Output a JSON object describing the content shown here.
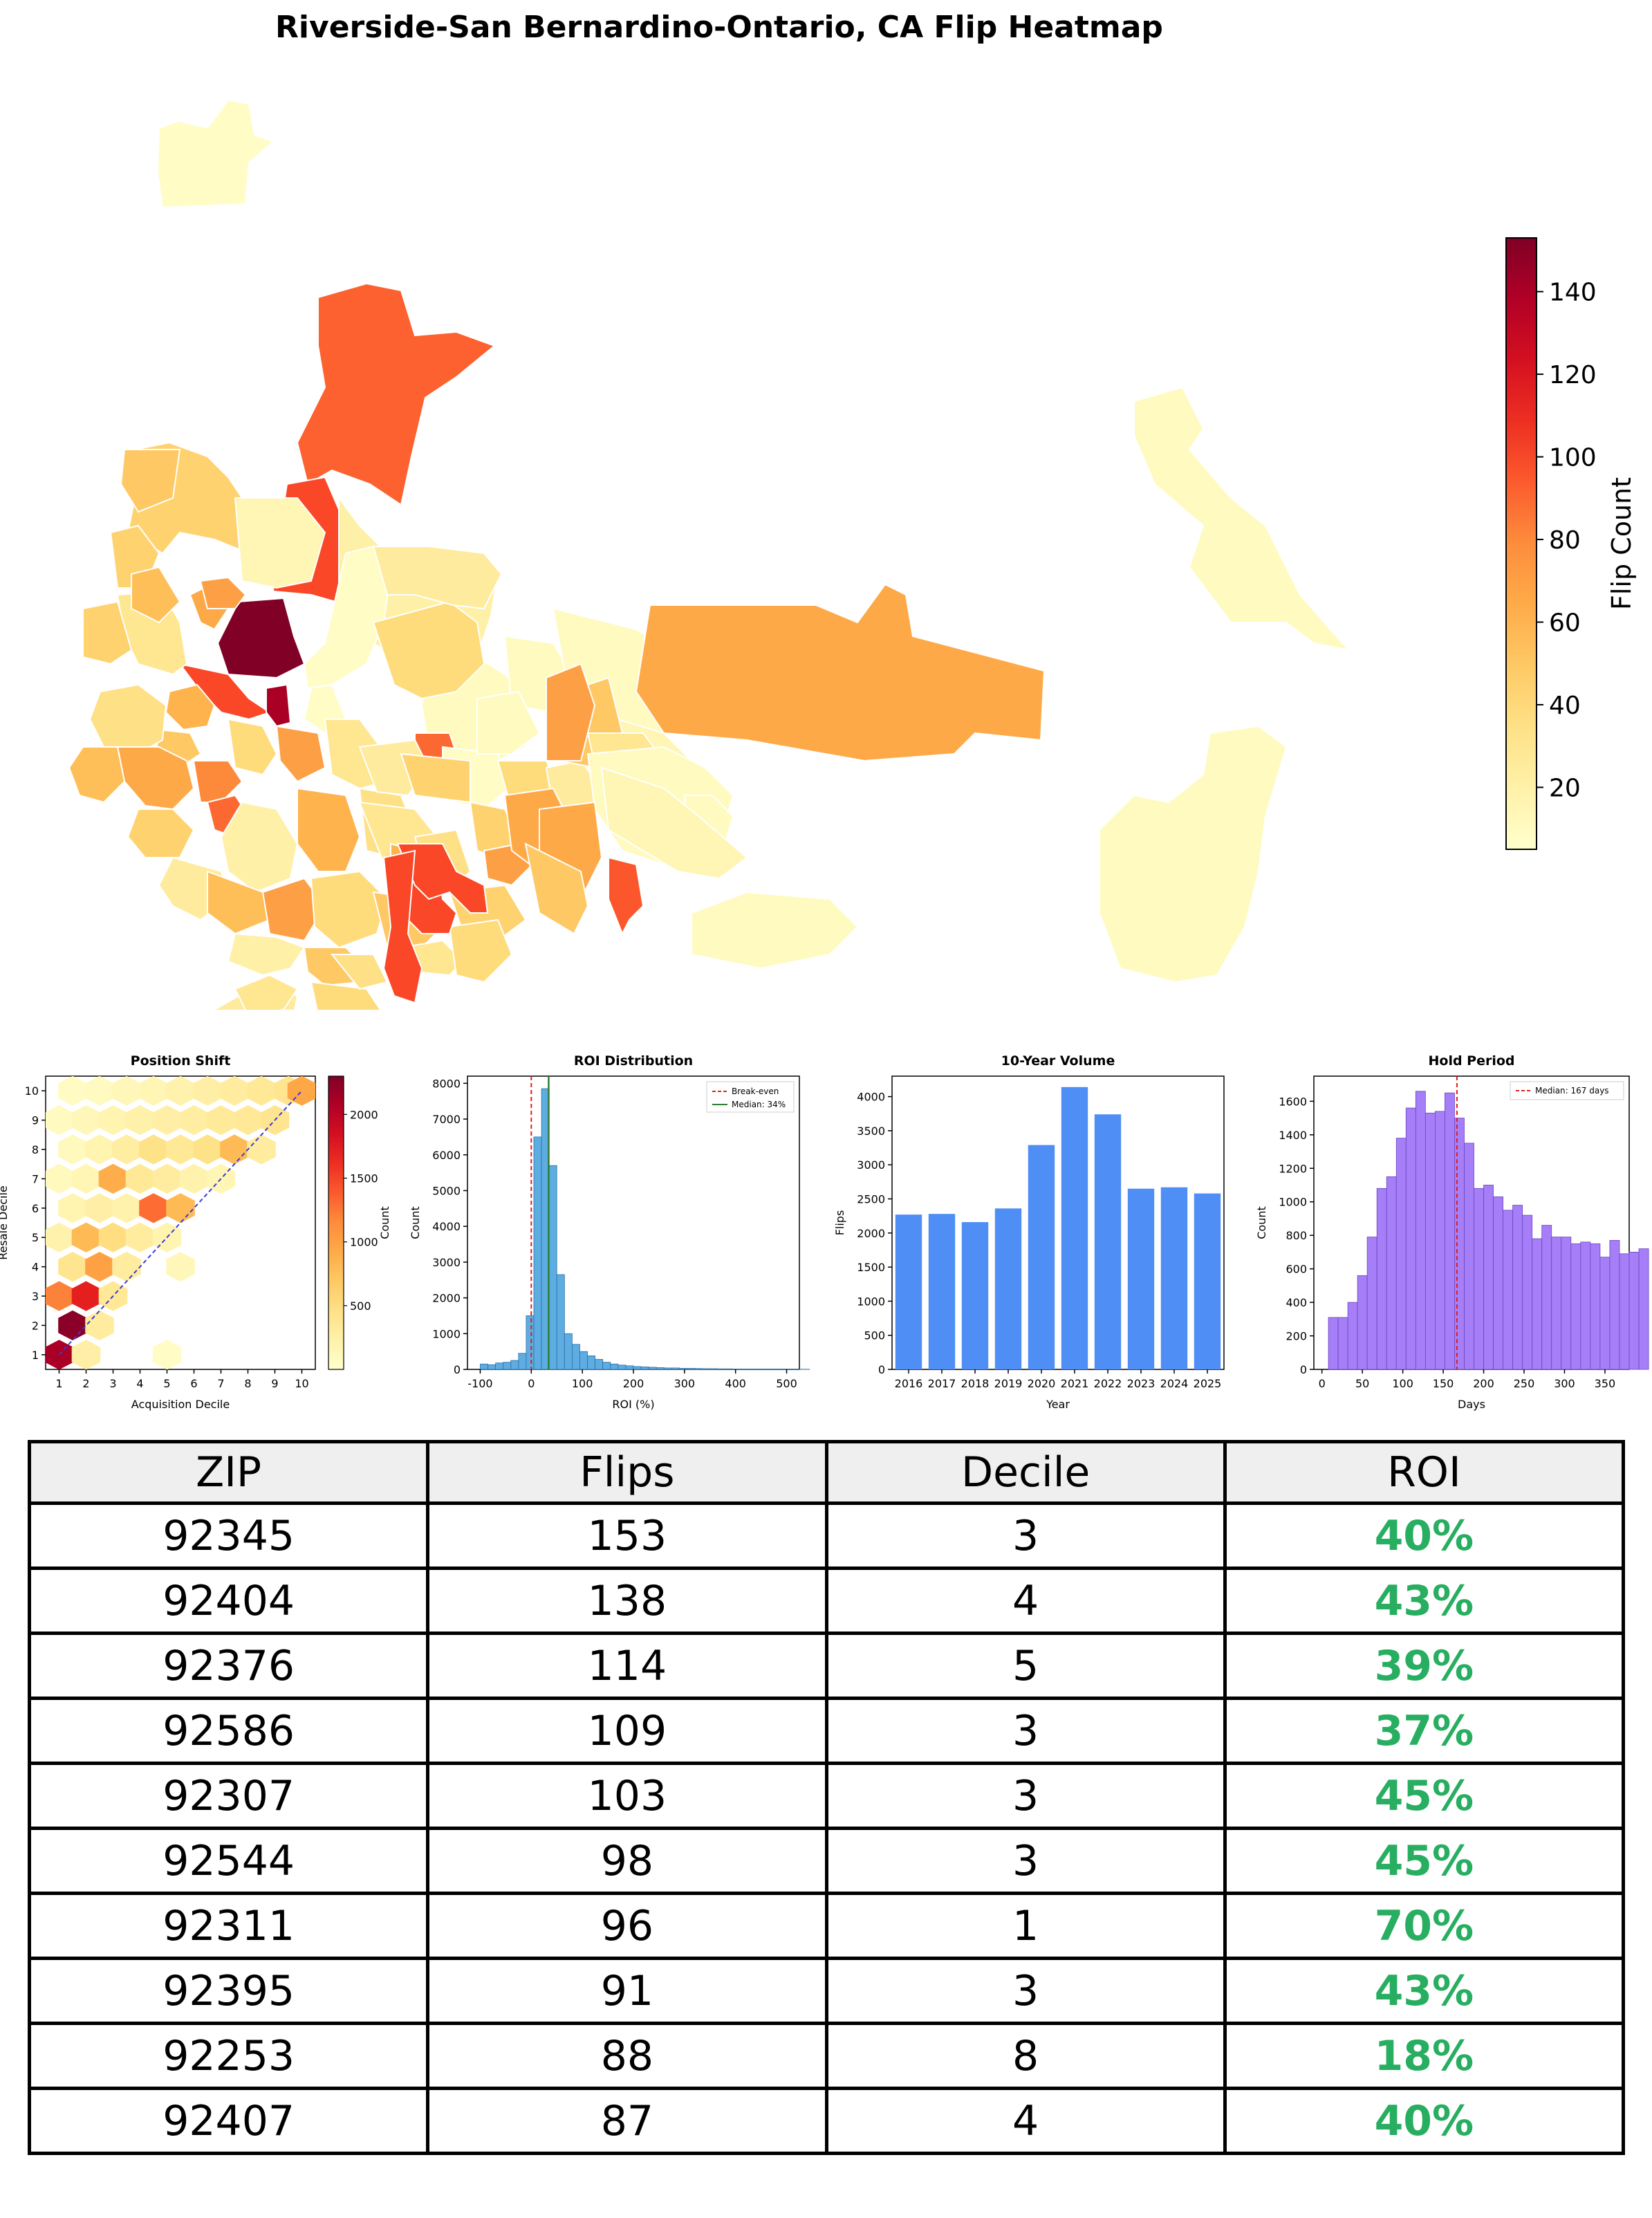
{
  "title": "Riverside-San Bernardino-Ontario, CA Flip Heatmap",
  "colors": {
    "map_light": "#ffffcc",
    "map_dark": "#800026",
    "roi_bar": "#5dade2",
    "volume_bar": "#4f8ef5",
    "hold_bar": "#a67ef7",
    "roi_text": "#27ae60",
    "break_even": "#e01e1e",
    "median": "#2e7d32"
  },
  "chart_data": [
    {
      "type": "map",
      "id": "flip-heatmap",
      "colorbar": {
        "label": "Flip Count",
        "min": 5,
        "max": 153,
        "ticks": [
          20,
          40,
          60,
          80,
          100,
          120,
          140
        ]
      }
    },
    {
      "type": "hexbin",
      "id": "position-shift",
      "title": "Position Shift",
      "xlabel": "Acquisition Decile",
      "ylabel": "Resale Decile",
      "xlim": [
        0.5,
        10.5
      ],
      "ylim": [
        0.5,
        10.5
      ],
      "xticks": [
        "1",
        "2",
        "3",
        "4",
        "5",
        "6",
        "7",
        "8",
        "9",
        "10"
      ],
      "yticks": [
        "1",
        "2",
        "3",
        "4",
        "5",
        "6",
        "7",
        "8",
        "9",
        "10"
      ],
      "colorbar": {
        "label": "Count",
        "min": 0,
        "max": 2300,
        "ticks": [
          "500",
          "1000",
          "1500",
          "2000"
        ]
      },
      "hexes": [
        {
          "x": 1.0,
          "y": 1.0,
          "v": 2100
        },
        {
          "x": 2.0,
          "y": 1.0,
          "v": 250
        },
        {
          "x": 5.0,
          "y": 1.0,
          "v": 40
        },
        {
          "x": 1.5,
          "y": 2.0,
          "v": 2250
        },
        {
          "x": 2.5,
          "y": 2.0,
          "v": 300
        },
        {
          "x": 1.0,
          "y": 3.0,
          "v": 1200
        },
        {
          "x": 2.0,
          "y": 3.0,
          "v": 1700
        },
        {
          "x": 3.0,
          "y": 3.0,
          "v": 350
        },
        {
          "x": 1.5,
          "y": 4.0,
          "v": 400
        },
        {
          "x": 2.5,
          "y": 4.0,
          "v": 1000
        },
        {
          "x": 3.5,
          "y": 4.0,
          "v": 300
        },
        {
          "x": 5.5,
          "y": 4.0,
          "v": 120
        },
        {
          "x": 1.0,
          "y": 5.0,
          "v": 200
        },
        {
          "x": 2.0,
          "y": 5.0,
          "v": 800
        },
        {
          "x": 3.0,
          "y": 5.0,
          "v": 500
        },
        {
          "x": 4.0,
          "y": 5.0,
          "v": 300
        },
        {
          "x": 5.0,
          "y": 5.0,
          "v": 180
        },
        {
          "x": 1.5,
          "y": 6.0,
          "v": 180
        },
        {
          "x": 2.5,
          "y": 6.0,
          "v": 250
        },
        {
          "x": 3.5,
          "y": 6.0,
          "v": 200
        },
        {
          "x": 4.5,
          "y": 6.0,
          "v": 1300
        },
        {
          "x": 5.5,
          "y": 6.0,
          "v": 800
        },
        {
          "x": 1.0,
          "y": 7.0,
          "v": 100
        },
        {
          "x": 2.0,
          "y": 7.0,
          "v": 150
        },
        {
          "x": 3.0,
          "y": 7.0,
          "v": 900
        },
        {
          "x": 4.0,
          "y": 7.0,
          "v": 350
        },
        {
          "x": 5.0,
          "y": 7.0,
          "v": 300
        },
        {
          "x": 6.0,
          "y": 7.0,
          "v": 200
        },
        {
          "x": 7.0,
          "y": 7.0,
          "v": 150
        },
        {
          "x": 1.5,
          "y": 8.0,
          "v": 100
        },
        {
          "x": 2.5,
          "y": 8.0,
          "v": 180
        },
        {
          "x": 3.5,
          "y": 8.0,
          "v": 280
        },
        {
          "x": 4.5,
          "y": 8.0,
          "v": 450
        },
        {
          "x": 5.5,
          "y": 8.0,
          "v": 350
        },
        {
          "x": 6.5,
          "y": 8.0,
          "v": 450
        },
        {
          "x": 7.5,
          "y": 8.0,
          "v": 800
        },
        {
          "x": 8.5,
          "y": 8.0,
          "v": 300
        },
        {
          "x": 1.0,
          "y": 9.0,
          "v": 80
        },
        {
          "x": 2.0,
          "y": 9.0,
          "v": 120
        },
        {
          "x": 3.0,
          "y": 9.0,
          "v": 180
        },
        {
          "x": 4.0,
          "y": 9.0,
          "v": 220
        },
        {
          "x": 5.0,
          "y": 9.0,
          "v": 250
        },
        {
          "x": 6.0,
          "y": 9.0,
          "v": 280
        },
        {
          "x": 7.0,
          "y": 9.0,
          "v": 330
        },
        {
          "x": 8.0,
          "y": 9.0,
          "v": 350
        },
        {
          "x": 9.0,
          "y": 9.0,
          "v": 400
        },
        {
          "x": 1.5,
          "y": 10.0,
          "v": 60
        },
        {
          "x": 2.5,
          "y": 10.0,
          "v": 80
        },
        {
          "x": 3.5,
          "y": 10.0,
          "v": 120
        },
        {
          "x": 4.5,
          "y": 10.0,
          "v": 150
        },
        {
          "x": 5.5,
          "y": 10.0,
          "v": 200
        },
        {
          "x": 6.5,
          "y": 10.0,
          "v": 250
        },
        {
          "x": 7.5,
          "y": 10.0,
          "v": 300
        },
        {
          "x": 8.5,
          "y": 10.0,
          "v": 350
        },
        {
          "x": 9.5,
          "y": 10.0,
          "v": 400
        },
        {
          "x": 10.0,
          "y": 10.0,
          "v": 950
        }
      ],
      "diagonal": [
        [
          1,
          1
        ],
        [
          10,
          10
        ]
      ]
    },
    {
      "type": "histogram",
      "id": "roi-distribution",
      "title": "ROI Distribution",
      "xlabel": "ROI (%)",
      "ylabel": "Count",
      "xlim": [
        -125,
        525
      ],
      "ylim": [
        0,
        8200
      ],
      "xticks": [
        -100,
        0,
        100,
        200,
        300,
        400,
        500
      ],
      "yticks": [
        0,
        1000,
        2000,
        3000,
        4000,
        5000,
        6000,
        7000,
        8000
      ],
      "bin_start": -100,
      "bin_width": 15,
      "values": [
        150,
        130,
        180,
        200,
        250,
        450,
        1500,
        6500,
        7850,
        5700,
        2650,
        1000,
        700,
        500,
        380,
        280,
        200,
        150,
        120,
        100,
        80,
        70,
        60,
        50,
        40,
        40,
        30,
        30,
        25,
        20,
        20,
        15,
        15,
        10,
        10,
        10,
        10,
        10,
        10,
        10,
        10,
        5,
        5
      ],
      "break_even": 0,
      "median": 34,
      "legend": [
        "Break-even",
        "Median: 34%"
      ]
    },
    {
      "type": "bar",
      "id": "ten-year-volume",
      "title": "10-Year Volume",
      "xlabel": "Year",
      "ylabel": "Flips",
      "ylim": [
        0,
        4300
      ],
      "yticks": [
        0,
        500,
        1000,
        1500,
        2000,
        2500,
        3000,
        3500,
        4000
      ],
      "categories": [
        "2016",
        "2017",
        "2018",
        "2019",
        "2020",
        "2021",
        "2022",
        "2023",
        "2024",
        "2025"
      ],
      "values": [
        2270,
        2280,
        2160,
        2360,
        3290,
        4140,
        3740,
        2650,
        2670,
        2580
      ]
    },
    {
      "type": "histogram",
      "id": "hold-period",
      "title": "Hold Period",
      "xlabel": "Days",
      "ylabel": "Count",
      "xlim": [
        -10,
        380
      ],
      "ylim": [
        0,
        1750
      ],
      "xticks": [
        0,
        50,
        100,
        150,
        200,
        250,
        300,
        350
      ],
      "yticks": [
        0,
        200,
        400,
        600,
        800,
        1000,
        1200,
        1400,
        1600
      ],
      "bin_start": 8,
      "bin_width": 12,
      "values": [
        310,
        310,
        400,
        560,
        790,
        1080,
        1150,
        1380,
        1560,
        1660,
        1530,
        1540,
        1650,
        1500,
        1350,
        1080,
        1100,
        1030,
        950,
        980,
        920,
        780,
        860,
        790,
        790,
        750,
        760,
        750,
        670,
        770,
        690,
        700,
        720
      ],
      "median": 167,
      "legend": [
        "Median: 167 days"
      ]
    }
  ],
  "table": {
    "headers": [
      "ZIP",
      "Flips",
      "Decile",
      "ROI"
    ],
    "rows": [
      [
        "92345",
        "153",
        "3",
        "40%"
      ],
      [
        "92404",
        "138",
        "4",
        "43%"
      ],
      [
        "92376",
        "114",
        "5",
        "39%"
      ],
      [
        "92586",
        "109",
        "3",
        "37%"
      ],
      [
        "92307",
        "103",
        "3",
        "45%"
      ],
      [
        "92544",
        "98",
        "3",
        "45%"
      ],
      [
        "92311",
        "96",
        "1",
        "70%"
      ],
      [
        "92395",
        "91",
        "3",
        "43%"
      ],
      [
        "92253",
        "88",
        "8",
        "18%"
      ],
      [
        "92407",
        "87",
        "4",
        "40%"
      ]
    ]
  }
}
